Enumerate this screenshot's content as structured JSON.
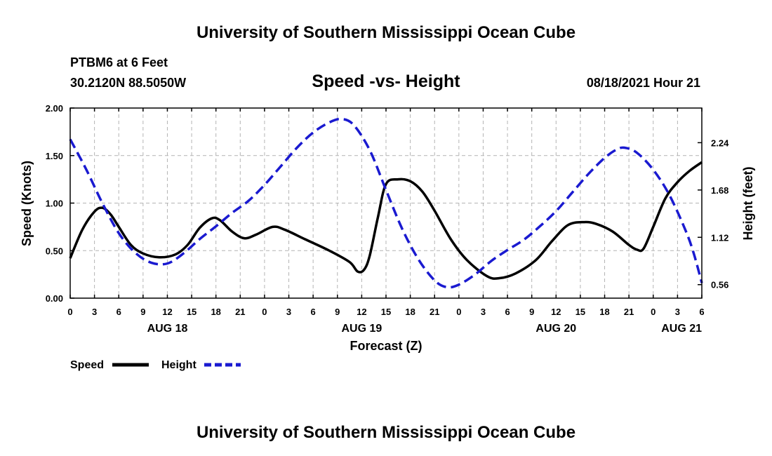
{
  "header": {
    "title_top": "University of Southern Mississippi Ocean Cube",
    "title_bottom": "University of Southern Mississippi Ocean Cube",
    "station": "PTBM6 at 6 Feet",
    "location": "30.2120N  88.5050W",
    "chart_title": "Speed -vs- Height",
    "timestamp": "08/18/2021 Hour 21"
  },
  "legend": {
    "speed_label": "Speed",
    "height_label": "Height"
  },
  "colors": {
    "speed": "#000000",
    "height": "#1a1ad0"
  },
  "chart_data": {
    "type": "line",
    "title": "Speed -vs- Height",
    "xlabel": "Forecast (Z)",
    "ylabel": "Speed (Knots)",
    "y2label": "Height (feet)",
    "x_unit": "hours from 08/18 00Z",
    "xlim": [
      0,
      78
    ],
    "ylim": [
      0,
      2.0
    ],
    "y2lim": [
      0.4,
      2.65
    ],
    "x_ticks": [
      {
        "x": 0,
        "label": "0"
      },
      {
        "x": 3,
        "label": "3"
      },
      {
        "x": 6,
        "label": "6"
      },
      {
        "x": 9,
        "label": "9"
      },
      {
        "x": 12,
        "label": "12"
      },
      {
        "x": 15,
        "label": "15"
      },
      {
        "x": 18,
        "label": "18"
      },
      {
        "x": 21,
        "label": "21"
      },
      {
        "x": 24,
        "label": "0"
      },
      {
        "x": 27,
        "label": "3"
      },
      {
        "x": 30,
        "label": "6"
      },
      {
        "x": 33,
        "label": "9"
      },
      {
        "x": 36,
        "label": "12"
      },
      {
        "x": 39,
        "label": "15"
      },
      {
        "x": 42,
        "label": "18"
      },
      {
        "x": 45,
        "label": "21"
      },
      {
        "x": 48,
        "label": "0"
      },
      {
        "x": 51,
        "label": "3"
      },
      {
        "x": 54,
        "label": "6"
      },
      {
        "x": 57,
        "label": "9"
      },
      {
        "x": 60,
        "label": "12"
      },
      {
        "x": 63,
        "label": "15"
      },
      {
        "x": 66,
        "label": "18"
      },
      {
        "x": 69,
        "label": "21"
      },
      {
        "x": 72,
        "label": "0"
      },
      {
        "x": 75,
        "label": "3"
      },
      {
        "x": 78,
        "label": "6"
      }
    ],
    "day_labels": [
      {
        "x": 12,
        "label": "AUG 18"
      },
      {
        "x": 36,
        "label": "AUG 19"
      },
      {
        "x": 60,
        "label": "AUG 20"
      },
      {
        "x": 75.5,
        "label": "AUG 21"
      }
    ],
    "y_ticks": [
      {
        "v": 0,
        "label": "0.00"
      },
      {
        "v": 0.5,
        "label": "0.50"
      },
      {
        "v": 1.0,
        "label": "1.00"
      },
      {
        "v": 1.5,
        "label": "1.50"
      },
      {
        "v": 2.0,
        "label": "2.00"
      }
    ],
    "y2_ticks": [
      {
        "v": 0.56,
        "label": "0.56"
      },
      {
        "v": 1.12,
        "label": "1.12"
      },
      {
        "v": 1.68,
        "label": "1.68"
      },
      {
        "v": 2.24,
        "label": "2.24"
      }
    ],
    "series": [
      {
        "name": "Speed",
        "axis": "left",
        "style": "solid",
        "points": [
          [
            0,
            0.42
          ],
          [
            1.5,
            0.72
          ],
          [
            3,
            0.91
          ],
          [
            4,
            0.95
          ],
          [
            5,
            0.88
          ],
          [
            6,
            0.75
          ],
          [
            7.5,
            0.56
          ],
          [
            9,
            0.47
          ],
          [
            11,
            0.43
          ],
          [
            13,
            0.46
          ],
          [
            14.5,
            0.56
          ],
          [
            16,
            0.74
          ],
          [
            17.5,
            0.84
          ],
          [
            18.5,
            0.82
          ],
          [
            20,
            0.7
          ],
          [
            21.5,
            0.63
          ],
          [
            23,
            0.67
          ],
          [
            25,
            0.75
          ],
          [
            26.5,
            0.72
          ],
          [
            29,
            0.62
          ],
          [
            32,
            0.5
          ],
          [
            34.5,
            0.38
          ],
          [
            35.5,
            0.28
          ],
          [
            36.3,
            0.3
          ],
          [
            37,
            0.45
          ],
          [
            38,
            0.85
          ],
          [
            39,
            1.2
          ],
          [
            40.5,
            1.25
          ],
          [
            42,
            1.23
          ],
          [
            43.5,
            1.12
          ],
          [
            45,
            0.92
          ],
          [
            47,
            0.62
          ],
          [
            49,
            0.4
          ],
          [
            51.5,
            0.23
          ],
          [
            53,
            0.21
          ],
          [
            55,
            0.26
          ],
          [
            57.5,
            0.4
          ],
          [
            59.5,
            0.6
          ],
          [
            61.5,
            0.77
          ],
          [
            63.5,
            0.8
          ],
          [
            65,
            0.78
          ],
          [
            67,
            0.7
          ],
          [
            69,
            0.56
          ],
          [
            70,
            0.51
          ],
          [
            70.8,
            0.52
          ],
          [
            72,
            0.75
          ],
          [
            73.5,
            1.05
          ],
          [
            75,
            1.22
          ],
          [
            76.5,
            1.34
          ],
          [
            78,
            1.43
          ]
        ]
      },
      {
        "name": "Height",
        "axis": "right",
        "style": "dashed",
        "points": [
          [
            0,
            2.28
          ],
          [
            2,
            1.92
          ],
          [
            4,
            1.52
          ],
          [
            6,
            1.17
          ],
          [
            8,
            0.94
          ],
          [
            10,
            0.82
          ],
          [
            12,
            0.81
          ],
          [
            14,
            0.93
          ],
          [
            16,
            1.1
          ],
          [
            18,
            1.25
          ],
          [
            20,
            1.41
          ],
          [
            22,
            1.55
          ],
          [
            24,
            1.74
          ],
          [
            26,
            1.96
          ],
          [
            28,
            2.18
          ],
          [
            30,
            2.36
          ],
          [
            32,
            2.48
          ],
          [
            33.5,
            2.52
          ],
          [
            35,
            2.45
          ],
          [
            37,
            2.15
          ],
          [
            39,
            1.68
          ],
          [
            41,
            1.22
          ],
          [
            43,
            0.86
          ],
          [
            45,
            0.61
          ],
          [
            46.5,
            0.53
          ],
          [
            48,
            0.56
          ],
          [
            50,
            0.68
          ],
          [
            52,
            0.84
          ],
          [
            54,
            0.97
          ],
          [
            56,
            1.09
          ],
          [
            58,
            1.25
          ],
          [
            60,
            1.43
          ],
          [
            62,
            1.65
          ],
          [
            64,
            1.87
          ],
          [
            66,
            2.06
          ],
          [
            67.5,
            2.16
          ],
          [
            68.5,
            2.18
          ],
          [
            70,
            2.12
          ],
          [
            72,
            1.92
          ],
          [
            74,
            1.62
          ],
          [
            76,
            1.2
          ],
          [
            77,
            0.93
          ],
          [
            78,
            0.58
          ]
        ]
      }
    ]
  }
}
